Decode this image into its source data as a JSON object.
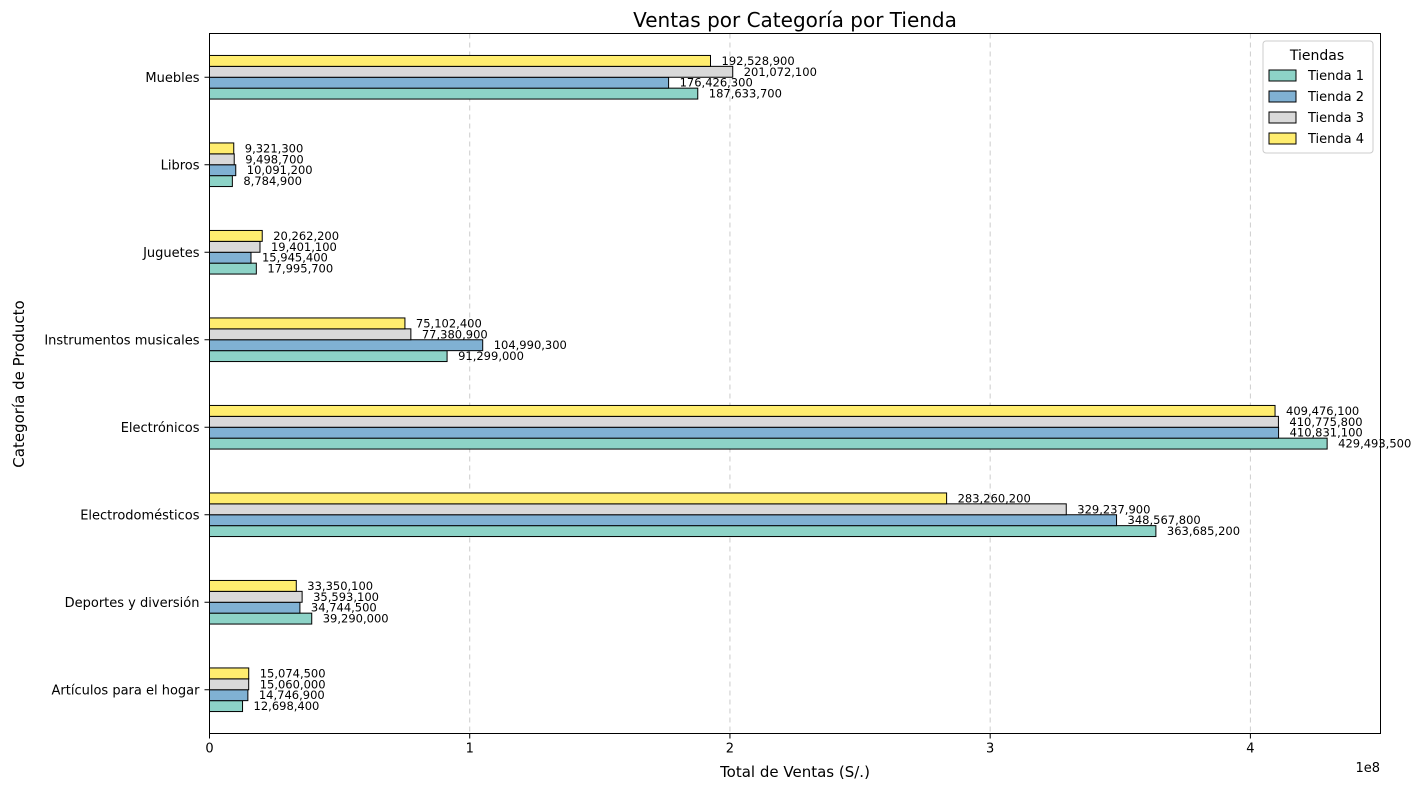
{
  "chart_data": {
    "type": "bar",
    "orientation": "horizontal",
    "title": "Ventas por Categoría por Tienda",
    "xlabel": "Total de Ventas (S/.)",
    "ylabel": "Categoría de Producto",
    "x_offset_label": "1e8",
    "xlim": [
      0,
      450000000
    ],
    "x_ticks": [
      0,
      100000000,
      200000000,
      300000000,
      400000000
    ],
    "x_tick_labels": [
      "0",
      "1",
      "2",
      "3",
      "4"
    ],
    "grid": "x-dashed",
    "legend_title": "Tiendas",
    "legend_position": "top-right",
    "categories": [
      "Artículos para el hogar",
      "Deportes y diversión",
      "Electrodomésticos",
      "Electrónicos",
      "Instrumentos musicales",
      "Juguetes",
      "Libros",
      "Muebles"
    ],
    "series": [
      {
        "name": "Tienda 1",
        "color": "#8dd3c7",
        "values": [
          12698400,
          39290000,
          363685200,
          429493500,
          91299000,
          17995700,
          8784900,
          187633700
        ],
        "labels": [
          "12,698,400",
          "39,290,000",
          "363,685,200",
          "429,493,500",
          "91,299,000",
          "17,995,700",
          "8,784,900",
          "187,633,700"
        ]
      },
      {
        "name": "Tienda 2",
        "color": "#80b1d3",
        "values": [
          14746900,
          34744500,
          348567800,
          410831100,
          104990300,
          15945400,
          10091200,
          176426300
        ],
        "labels": [
          "14,746,900",
          "34,744,500",
          "348,567,800",
          "410,831,100",
          "104,990,300",
          "15,945,400",
          "10,091,200",
          "176,426,300"
        ]
      },
      {
        "name": "Tienda 3",
        "color": "#d9d9d9",
        "values": [
          15060000,
          35593100,
          329237900,
          410775800,
          77380900,
          19401100,
          9498700,
          201072100
        ],
        "labels": [
          "15,060,000",
          "35,593,100",
          "329,237,900",
          "410,775,800",
          "77,380,900",
          "19,401,100",
          "9,498,700",
          "201,072,100"
        ]
      },
      {
        "name": "Tienda 4",
        "color": "#ffed6f",
        "values": [
          15074500,
          33350100,
          283260200,
          409476100,
          75102400,
          20262200,
          9321300,
          192528900
        ],
        "labels": [
          "15,074,500",
          "33,350,100",
          "283,260,200",
          "409,476,100",
          "75,102,400",
          "20,262,200",
          "9,321,300",
          "192,528,900"
        ]
      }
    ]
  }
}
